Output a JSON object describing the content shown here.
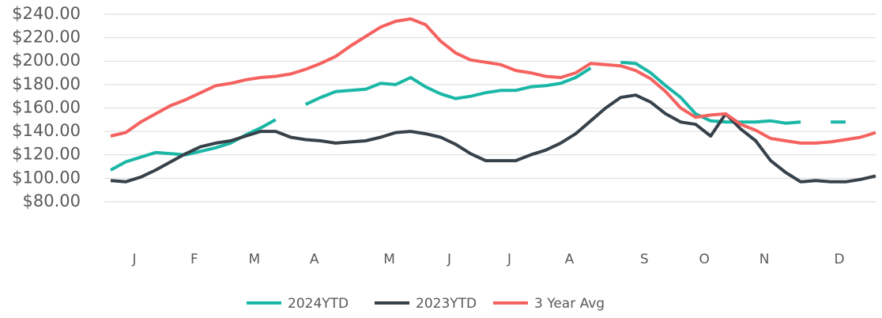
{
  "chart_data": {
    "type": "line",
    "categories": [
      null,
      null,
      "J",
      null,
      null,
      null,
      "F",
      null,
      null,
      null,
      "M",
      null,
      null,
      null,
      "A",
      null,
      null,
      null,
      null,
      "M",
      null,
      null,
      null,
      "J",
      null,
      null,
      null,
      "J",
      null,
      null,
      null,
      "A",
      null,
      null,
      null,
      null,
      "S",
      null,
      null,
      null,
      "O",
      null,
      null,
      null,
      "N",
      null,
      null,
      null,
      null,
      "D",
      null,
      null
    ],
    "series": [
      {
        "name": "2024YTD",
        "color": "#1ab7a6",
        "values": [
          107,
          114,
          118,
          122,
          121,
          120,
          123,
          126,
          130,
          137,
          143,
          150,
          null,
          163,
          169,
          174,
          175,
          176,
          181,
          180,
          186,
          178,
          172,
          168,
          170,
          173,
          175,
          175,
          178,
          179,
          181,
          186,
          194,
          null,
          199,
          198,
          190,
          179,
          169,
          155,
          149,
          148,
          148,
          148,
          149,
          147,
          148,
          null,
          148,
          148,
          null,
          null
        ]
      },
      {
        "name": "2023YTD",
        "color": "#374149",
        "values": [
          98,
          97,
          101,
          107,
          114,
          121,
          127,
          130,
          132,
          136,
          140,
          140,
          135,
          133,
          132,
          130,
          131,
          132,
          135,
          139,
          140,
          138,
          135,
          129,
          121,
          115,
          115,
          115,
          120,
          124,
          130,
          138,
          149,
          160,
          169,
          171,
          165,
          155,
          148,
          146,
          136,
          155,
          142,
          132,
          115,
          105,
          97,
          98,
          97,
          97,
          99,
          102
        ]
      },
      {
        "name": "3 Year Avg",
        "color": "#f4625f",
        "values": [
          136,
          139,
          148,
          155,
          162,
          167,
          173,
          179,
          181,
          184,
          186,
          187,
          189,
          193,
          198,
          204,
          213,
          221,
          229,
          234,
          236,
          231,
          217,
          207,
          201,
          199,
          197,
          192,
          190,
          187,
          186,
          190,
          198,
          197,
          196,
          192,
          185,
          174,
          160,
          152,
          154,
          155,
          146,
          141,
          134,
          132,
          130,
          130,
          131,
          133,
          135,
          139
        ]
      }
    ],
    "ylim": [
      60,
      240
    ],
    "yticks": [
      {
        "value": 80,
        "label": "$80.00"
      },
      {
        "value": 100,
        "label": "$100.00"
      },
      {
        "value": 120,
        "label": "$120.00"
      },
      {
        "value": 140,
        "label": "$140.00"
      },
      {
        "value": 160,
        "label": "$160.00"
      },
      {
        "value": 180,
        "label": "$180.00"
      },
      {
        "value": 200,
        "label": "$200.00"
      },
      {
        "value": 220,
        "label": "$220.00"
      },
      {
        "value": 240,
        "label": "$240.00"
      }
    ],
    "grid": true,
    "legend": "bottom"
  }
}
